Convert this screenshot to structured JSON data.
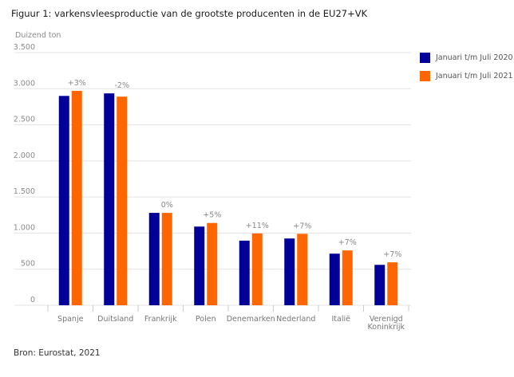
{
  "chart_data": {
    "type": "bar",
    "title": "Figuur 1: varkensvleesproductie van de grootste producenten in de EU27+VK",
    "ylabel": "Duizend ton",
    "xlabel": "",
    "ylim": [
      0,
      3500
    ],
    "yticks": [
      0,
      500,
      1000,
      1500,
      2000,
      2500,
      3000,
      3500
    ],
    "ytick_labels": [
      "0",
      "500",
      "1.000",
      "1.500",
      "2.000",
      "2.500",
      "3.000",
      "3.500"
    ],
    "grid": true,
    "legend_position": "top-right",
    "categories": [
      "Spanje",
      "Duitsland",
      "Frankrijk",
      "Polen",
      "Denemarken",
      "Nederland",
      "Italië",
      [
        "Verenigd",
        "Koninkrijk"
      ]
    ],
    "series": [
      {
        "name": "Januari t/m Juli 2020",
        "color": "#000099",
        "values": [
          2900,
          2935,
          1280,
          1090,
          895,
          925,
          715,
          560
        ]
      },
      {
        "name": "Januari t/m Juli 2021",
        "color": "#ff6600",
        "values": [
          2970,
          2890,
          1280,
          1140,
          995,
          990,
          760,
          595
        ]
      }
    ],
    "annotations": [
      "+3%",
      "-2%",
      "0%",
      "+5%",
      "+11%",
      "+7%",
      "+7%",
      "+7%"
    ]
  },
  "source": "Bron: Eurostat, 2021"
}
